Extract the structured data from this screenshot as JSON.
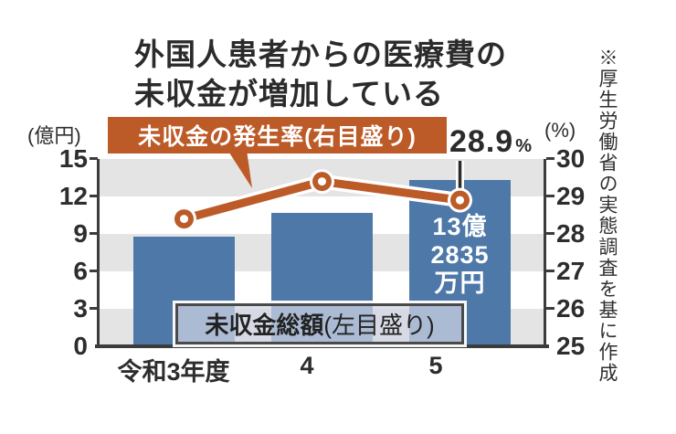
{
  "title": {
    "line1": "外国人患者からの医療費の",
    "line2": "未収金が増加している"
  },
  "source_note": "※厚生労働省の実態調査を基に作成",
  "axes": {
    "left_unit": "(億円)",
    "left_ticks": [
      "15",
      "12",
      "9",
      "6",
      "3",
      "0"
    ],
    "right_unit": "(%)",
    "right_ticks": [
      "30",
      "29",
      "28",
      "27",
      "26",
      "25"
    ]
  },
  "legend": {
    "line_series_label": "未収金の発生率(右目盛り)",
    "bar_series_label_bold": "未収金総額",
    "bar_series_label_rest": "(左目盛り)"
  },
  "annotations": {
    "peak_value": "28.9",
    "peak_unit": "%",
    "bar3_value_lines": [
      "13億",
      "2835",
      "万円"
    ]
  },
  "x_labels": [
    "令和3年度",
    "4",
    "5"
  ],
  "colors": {
    "bar_blue": "#4d78a8",
    "line_orange": "#bc5b28",
    "band_gray": "#e4e4e4",
    "axis_dark": "#3c3c3c",
    "text_dark": "#2d2d2d"
  },
  "chart_data": {
    "type": "bar+line",
    "title": "外国人患者からの医療費の未収金が増加している",
    "categories": [
      "令和3年度",
      "令和4年度",
      "令和5年度"
    ],
    "series": [
      {
        "name": "未収金総額(左目盛り)",
        "type": "bar",
        "axis": "left",
        "unit": "億円",
        "values": [
          8.8,
          10.7,
          13.2835
        ],
        "data_labels": [
          null,
          null,
          "13億2835万円"
        ]
      },
      {
        "name": "未収金の発生率(右目盛り)",
        "type": "line",
        "axis": "right",
        "unit": "%",
        "values": [
          28.4,
          29.4,
          28.9
        ],
        "data_labels": [
          null,
          null,
          "28.9%"
        ]
      }
    ],
    "left_ylabel": "(億円)",
    "left_ylim": [
      0,
      15
    ],
    "left_tick_step": 3,
    "right_ylabel": "(%)",
    "right_ylim": [
      25,
      30
    ],
    "right_tick_step": 1,
    "grid": "alternating horizontal bands",
    "legend_position": "line label above plot, bar label inside plot bottom",
    "source": "※厚生労働省の実態調査を基に作成"
  }
}
